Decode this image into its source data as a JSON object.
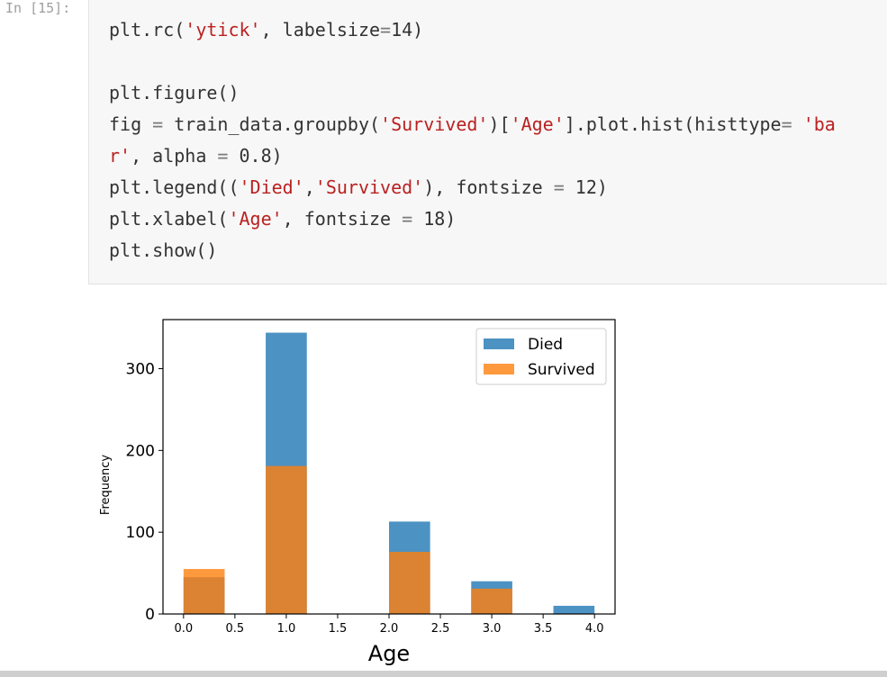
{
  "cell": {
    "prompt": "In [15]:",
    "lines": [
      [
        {
          "t": "plt.rc(",
          "c": ""
        },
        {
          "t": "'ytick'",
          "c": "str"
        },
        {
          "t": ", labelsize",
          "c": ""
        },
        {
          "t": "=",
          "c": "op"
        },
        {
          "t": "14)",
          "c": ""
        }
      ],
      [],
      [
        {
          "t": "plt.figure()",
          "c": ""
        }
      ],
      [
        {
          "t": "fig ",
          "c": ""
        },
        {
          "t": "=",
          "c": "op"
        },
        {
          "t": " train_data.groupby(",
          "c": ""
        },
        {
          "t": "'Survived'",
          "c": "str"
        },
        {
          "t": ")[",
          "c": ""
        },
        {
          "t": "'Age'",
          "c": "str"
        },
        {
          "t": "].plot.hist(histtype",
          "c": ""
        },
        {
          "t": "=",
          "c": "op"
        },
        {
          "t": " ",
          "c": ""
        },
        {
          "t": "'ba",
          "c": "str"
        }
      ],
      [
        {
          "t": "r'",
          "c": "str"
        },
        {
          "t": ", alpha ",
          "c": ""
        },
        {
          "t": "=",
          "c": "op"
        },
        {
          "t": " 0.8)",
          "c": ""
        }
      ],
      [
        {
          "t": "plt.legend((",
          "c": ""
        },
        {
          "t": "'Died'",
          "c": "str"
        },
        {
          "t": ",",
          "c": ""
        },
        {
          "t": "'Survived'",
          "c": "str"
        },
        {
          "t": "), fontsize ",
          "c": ""
        },
        {
          "t": "=",
          "c": "op"
        },
        {
          "t": " 12)",
          "c": ""
        }
      ],
      [
        {
          "t": "plt.xlabel(",
          "c": ""
        },
        {
          "t": "'Age'",
          "c": "str"
        },
        {
          "t": ", fontsize ",
          "c": ""
        },
        {
          "t": "=",
          "c": "op"
        },
        {
          "t": " 18)",
          "c": ""
        }
      ],
      [
        {
          "t": "plt.show()",
          "c": ""
        }
      ]
    ]
  },
  "chart_data": {
    "type": "bar",
    "xlabel": "Age",
    "ylabel": "Frequency",
    "xlim": [
      -0.2,
      4.2
    ],
    "ylim": [
      0,
      360
    ],
    "xticks": [
      "0.0",
      "0.5",
      "1.0",
      "1.5",
      "2.0",
      "2.5",
      "3.0",
      "3.5",
      "4.0"
    ],
    "yticks": [
      "0",
      "100",
      "200",
      "300"
    ],
    "bin_edges": [
      0.0,
      0.4,
      0.8,
      1.2,
      1.6,
      2.0,
      2.4,
      2.8,
      3.2,
      3.6,
      4.0
    ],
    "series": [
      {
        "name": "Died",
        "color": "#1f77b4",
        "values": [
          45,
          0,
          344,
          0,
          0,
          113,
          0,
          40,
          0,
          10
        ]
      },
      {
        "name": "Survived",
        "color": "#ff7f0e",
        "values": [
          55,
          0,
          181,
          0,
          0,
          76,
          0,
          31,
          0,
          0
        ]
      }
    ],
    "alpha": 0.8,
    "legend_position": "top-right"
  }
}
